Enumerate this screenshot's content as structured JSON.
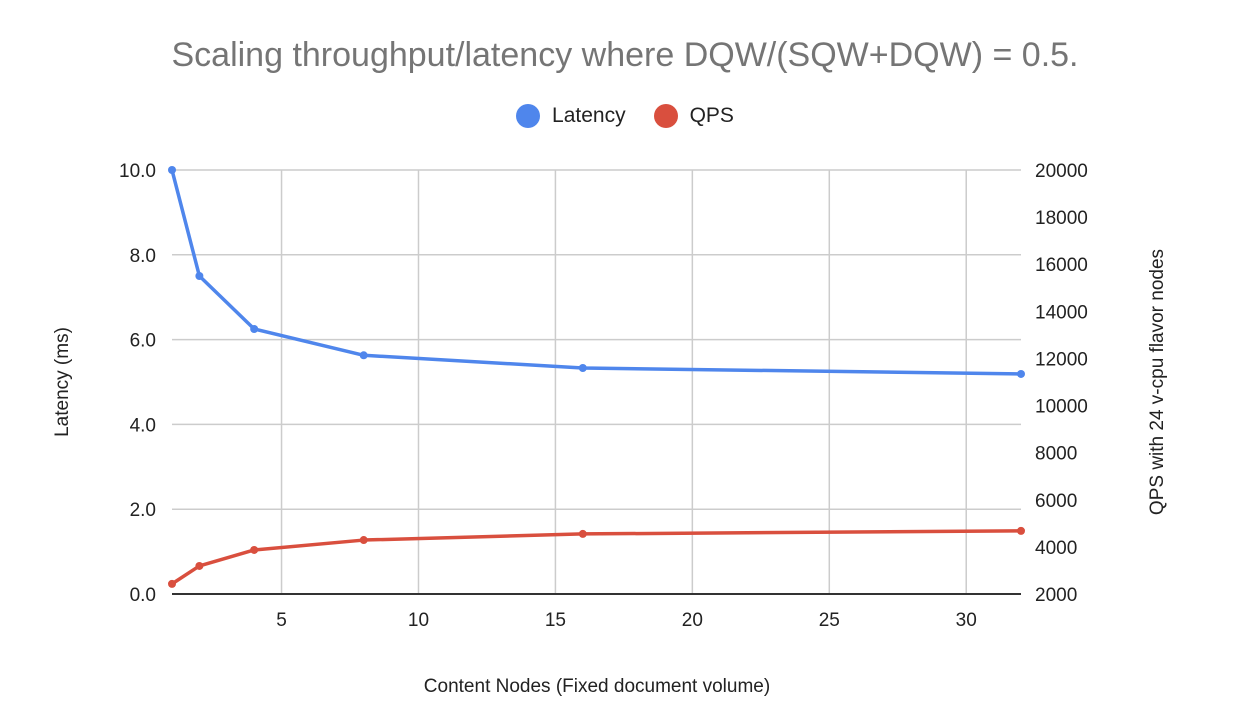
{
  "chart_data": {
    "type": "line",
    "title": "Scaling throughput/latency where DQW/(SQW+DQW) = 0.5.",
    "xlabel": "Content Nodes (Fixed document volume)",
    "ylabel": "Latency (ms)",
    "y2label": "QPS with 24 v-cpu flavor nodes",
    "x": [
      1,
      2,
      4,
      8,
      16,
      32
    ],
    "series": [
      {
        "name": "Latency",
        "axis": "left",
        "color": "#4f86ec",
        "values": [
          10.0,
          7.5,
          6.25,
          5.63,
          5.33,
          5.19
        ]
      },
      {
        "name": "QPS",
        "axis": "right",
        "color": "#d94f3e",
        "values": [
          2430,
          3190,
          3870,
          4290,
          4550,
          4680
        ]
      }
    ],
    "xlim": [
      1,
      32
    ],
    "ylim": [
      0,
      10
    ],
    "y2lim": [
      2000,
      20000
    ],
    "xticks": [
      "5",
      "10",
      "15",
      "20",
      "25",
      "30"
    ],
    "yticks": [
      "0.0",
      "2.0",
      "4.0",
      "6.0",
      "8.0",
      "10.0"
    ],
    "y2ticks": [
      "2000",
      "4000",
      "6000",
      "8000",
      "10000",
      "12000",
      "14000",
      "16000",
      "18000",
      "20000"
    ],
    "grid": true,
    "legend_position": "top"
  },
  "legend": [
    {
      "label": "Latency",
      "color": "#4f86ec"
    },
    {
      "label": "QPS",
      "color": "#d94f3e"
    }
  ]
}
